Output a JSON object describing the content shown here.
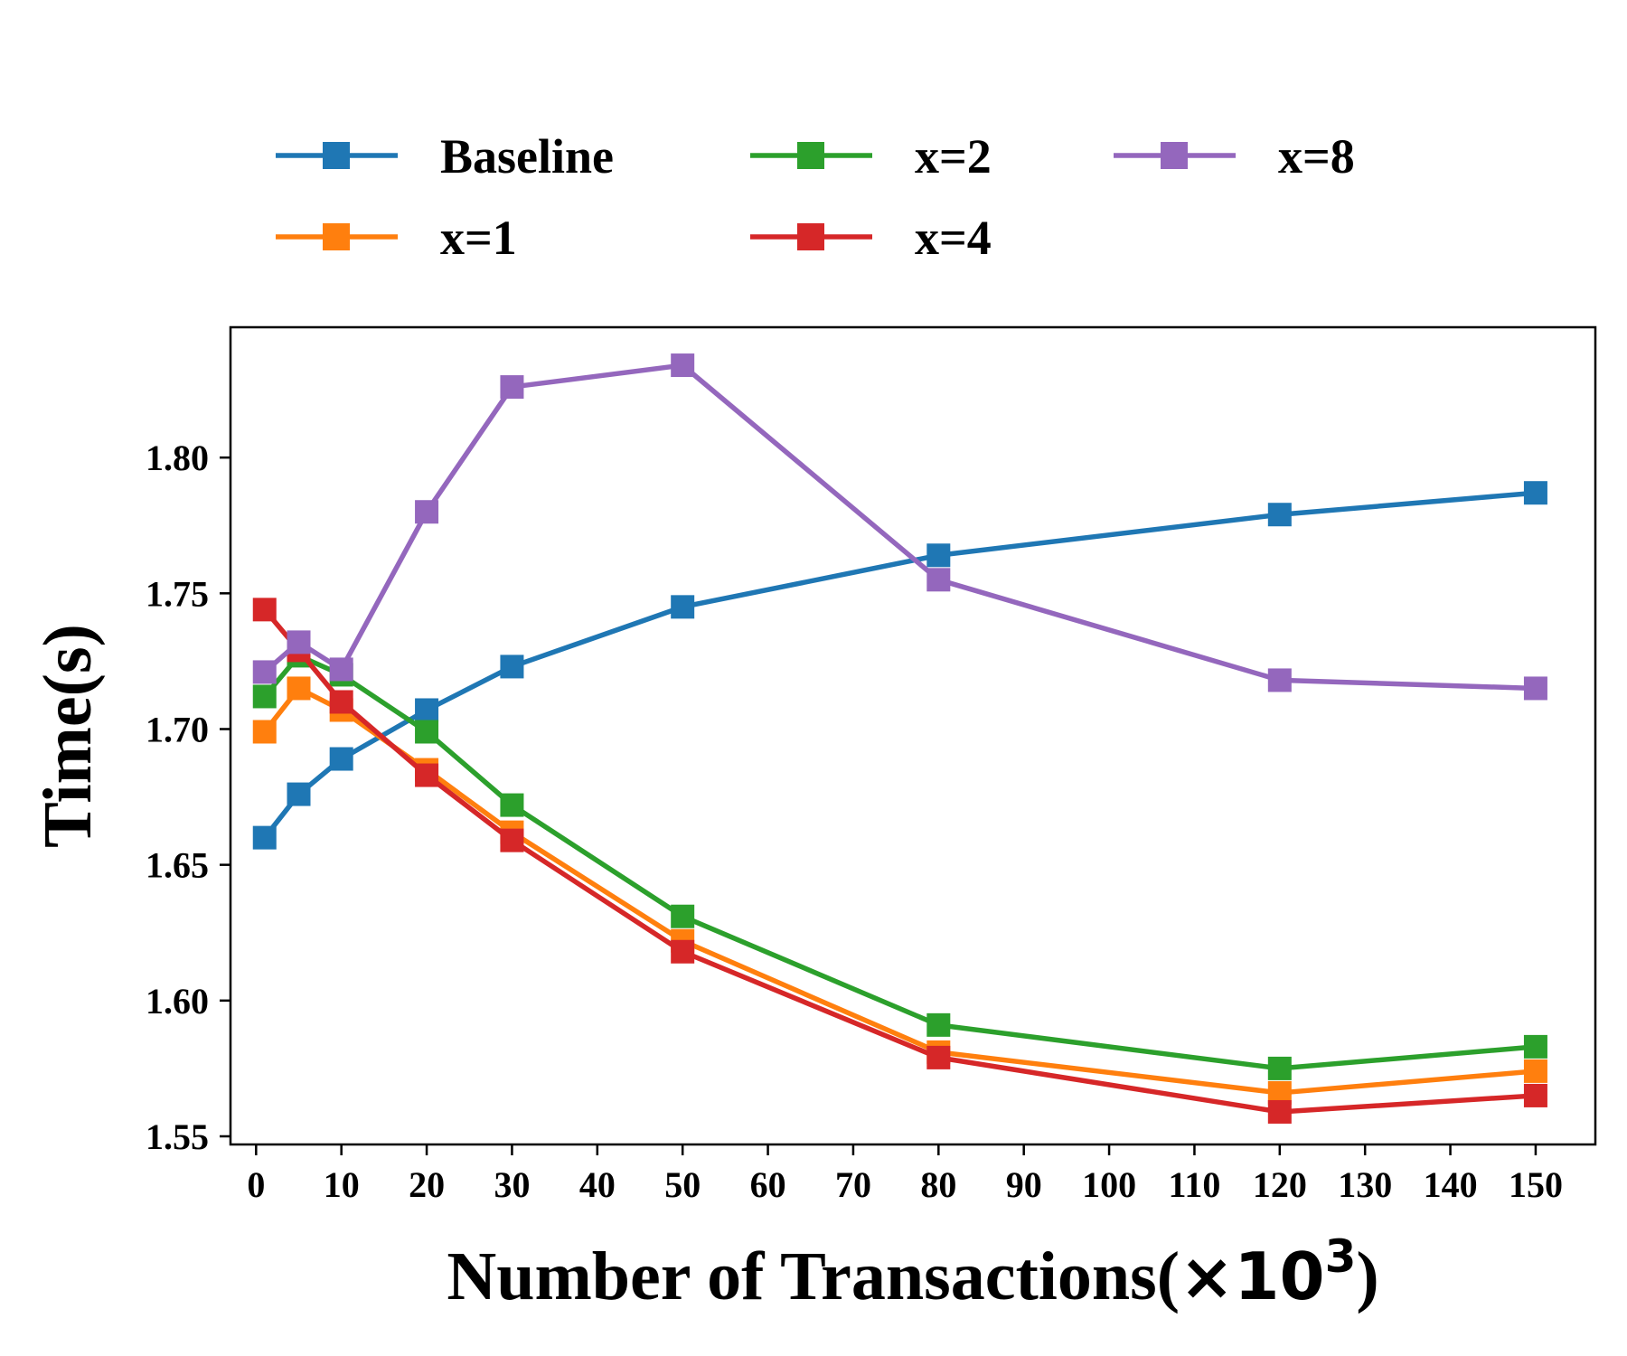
{
  "chart_data": {
    "type": "line",
    "title": "",
    "xlabel_main": "Number of Transactions(",
    "xlabel_mult": "×10",
    "xlabel_exp": "3",
    "xlabel_close": ")",
    "ylabel": "Time(s)",
    "x": [
      1,
      5,
      10,
      20,
      30,
      50,
      80,
      120,
      150
    ],
    "xlim": [
      -3,
      157
    ],
    "ylim": [
      1.547,
      1.848
    ],
    "xticks": [
      0,
      10,
      20,
      30,
      40,
      50,
      60,
      70,
      80,
      90,
      100,
      110,
      120,
      130,
      140,
      150
    ],
    "xtick_labels": [
      "0",
      "10",
      "20",
      "30",
      "40",
      "50",
      "60",
      "70",
      "80",
      "90",
      "100",
      "110",
      "120",
      "130",
      "140",
      "150"
    ],
    "yticks": [
      1.55,
      1.6,
      1.65,
      1.7,
      1.75,
      1.8
    ],
    "ytick_labels": [
      "1.55",
      "1.60",
      "1.65",
      "1.70",
      "1.75",
      "1.80"
    ],
    "grid": false,
    "legend_position": "top, outside plot, 3 columns",
    "marker": "square",
    "series": [
      {
        "name": "Baseline",
        "color": "#1f77b4",
        "values": [
          1.66,
          1.676,
          1.689,
          1.707,
          1.723,
          1.745,
          1.764,
          1.779,
          1.787
        ]
      },
      {
        "name": "x=1",
        "color": "#ff7f0e",
        "values": [
          1.699,
          1.715,
          1.707,
          1.685,
          1.662,
          1.622,
          1.581,
          1.566,
          1.574
        ]
      },
      {
        "name": "x=2",
        "color": "#2ca02c",
        "values": [
          1.712,
          1.727,
          1.72,
          1.699,
          1.672,
          1.631,
          1.591,
          1.575,
          1.583
        ]
      },
      {
        "name": "x=4",
        "color": "#d62728",
        "values": [
          1.744,
          1.729,
          1.71,
          1.683,
          1.659,
          1.618,
          1.579,
          1.559,
          1.565
        ]
      },
      {
        "name": "x=8",
        "color": "#9467bd",
        "values": [
          1.721,
          1.732,
          1.722,
          1.78,
          1.826,
          1.834,
          1.755,
          1.718,
          1.715
        ]
      }
    ],
    "legend_layout": [
      [
        "Baseline",
        "x=2",
        "x=8"
      ],
      [
        "x=1",
        "x=4",
        ""
      ]
    ]
  }
}
